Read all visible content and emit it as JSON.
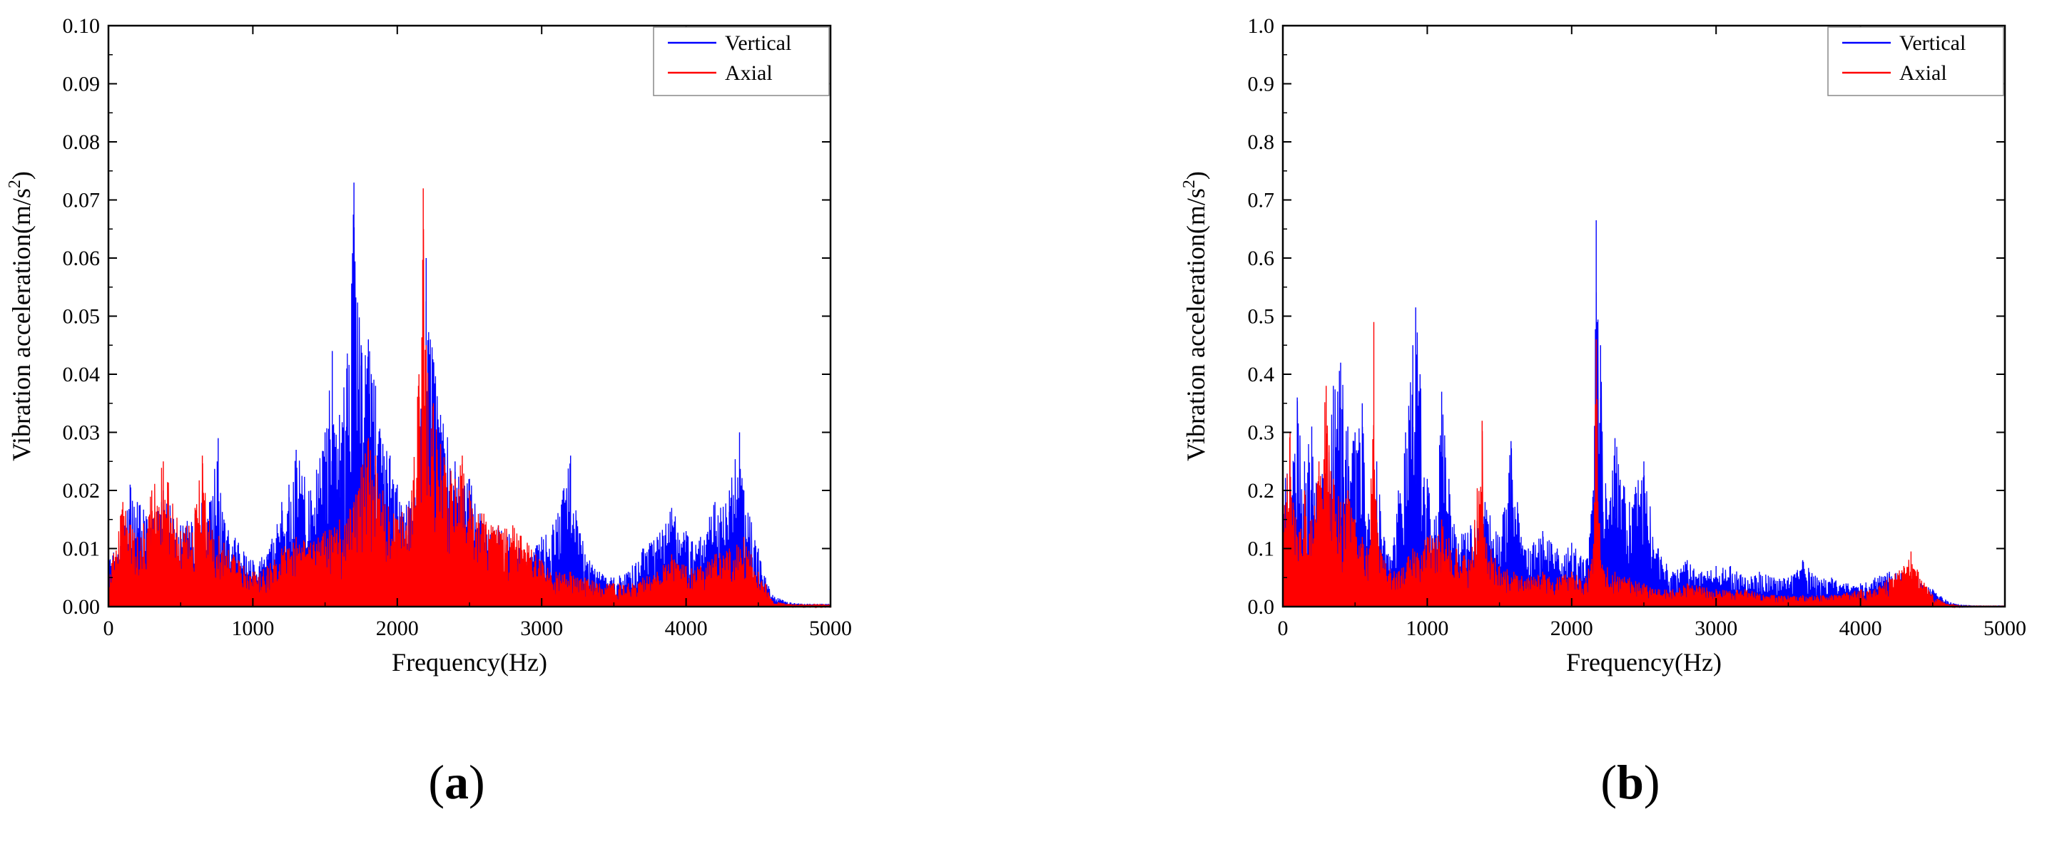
{
  "colors": {
    "vertical": "#0000ff",
    "axial": "#ff0000",
    "axis": "#000000",
    "legend_border": "#888888"
  },
  "chart_data": [
    {
      "type": "line",
      "panel_label": "a",
      "xlabel": "Frequency(Hz)",
      "ylabel_main": "Vibration acceleration(m/s",
      "ylabel_sup": "2",
      "ylabel_tail": ")",
      "xlim": [
        0,
        5000
      ],
      "ylim": [
        0,
        0.1
      ],
      "xticks": [
        0,
        1000,
        2000,
        3000,
        4000,
        5000
      ],
      "xtick_labels": [
        "0",
        "1000",
        "2000",
        "3000",
        "4000",
        "5000"
      ],
      "yticks": [
        0,
        0.01,
        0.02,
        0.03,
        0.04,
        0.05,
        0.06,
        0.07,
        0.08,
        0.09,
        0.1
      ],
      "ytick_labels": [
        "0.00",
        "0.01",
        "0.02",
        "0.03",
        "0.04",
        "0.05",
        "0.06",
        "0.07",
        "0.08",
        "0.09",
        "0.10"
      ],
      "legend_position": "top-right",
      "series": [
        {
          "name": "Vertical",
          "color": "#0000ff",
          "x": [
            0,
            100,
            150,
            200,
            300,
            380,
            500,
            600,
            650,
            700,
            760,
            800,
            900,
            1000,
            1100,
            1200,
            1250,
            1300,
            1400,
            1500,
            1550,
            1600,
            1650,
            1700,
            1750,
            1800,
            1850,
            1900,
            1950,
            2000,
            2100,
            2150,
            2200,
            2300,
            2400,
            2500,
            2600,
            2700,
            2800,
            2900,
            3000,
            3100,
            3200,
            3300,
            3400,
            3500,
            3600,
            3700,
            3800,
            3900,
            4000,
            4100,
            4200,
            4300,
            4370,
            4400,
            4500,
            4550,
            4600,
            4700,
            4800,
            5000
          ],
          "y": [
            0.008,
            0.014,
            0.021,
            0.018,
            0.016,
            0.02,
            0.014,
            0.016,
            0.02,
            0.018,
            0.029,
            0.015,
            0.011,
            0.008,
            0.009,
            0.018,
            0.021,
            0.027,
            0.02,
            0.03,
            0.044,
            0.033,
            0.041,
            0.073,
            0.045,
            0.046,
            0.038,
            0.028,
            0.026,
            0.021,
            0.018,
            0.028,
            0.06,
            0.033,
            0.025,
            0.022,
            0.014,
            0.014,
            0.012,
            0.009,
            0.012,
            0.015,
            0.026,
            0.009,
            0.006,
            0.005,
            0.006,
            0.01,
            0.012,
            0.017,
            0.013,
            0.012,
            0.018,
            0.02,
            0.03,
            0.02,
            0.01,
            0.005,
            0.002,
            0.0008,
            0.0005,
            0.0005
          ]
        },
        {
          "name": "Axial",
          "color": "#ff0000",
          "x": [
            0,
            100,
            200,
            300,
            380,
            500,
            600,
            650,
            700,
            800,
            900,
            1000,
            1100,
            1200,
            1300,
            1400,
            1500,
            1600,
            1700,
            1750,
            1800,
            1850,
            1900,
            2000,
            2100,
            2150,
            2180,
            2200,
            2250,
            2300,
            2400,
            2450,
            2500,
            2600,
            2700,
            2800,
            2900,
            3000,
            3100,
            3200,
            3300,
            3400,
            3500,
            3600,
            3700,
            3800,
            3900,
            4000,
            4100,
            4200,
            4300,
            4400,
            4450,
            4500,
            4550,
            4600,
            4700,
            4800,
            5000
          ],
          "y": [
            0.005,
            0.018,
            0.012,
            0.02,
            0.025,
            0.013,
            0.017,
            0.026,
            0.015,
            0.011,
            0.008,
            0.006,
            0.007,
            0.01,
            0.012,
            0.011,
            0.013,
            0.015,
            0.018,
            0.024,
            0.029,
            0.026,
            0.02,
            0.015,
            0.02,
            0.04,
            0.072,
            0.045,
            0.035,
            0.028,
            0.022,
            0.026,
            0.02,
            0.016,
            0.014,
            0.014,
            0.011,
            0.008,
            0.006,
            0.006,
            0.005,
            0.004,
            0.004,
            0.004,
            0.005,
            0.006,
            0.009,
            0.007,
            0.007,
            0.009,
            0.01,
            0.012,
            0.009,
            0.006,
            0.004,
            0.001,
            0.0005,
            0.0004,
            0.0004
          ]
        }
      ]
    },
    {
      "type": "line",
      "panel_label": "b",
      "xlabel": "Frequency(Hz)",
      "ylabel_main": "Vibration acceleration(m/s",
      "ylabel_sup": "2",
      "ylabel_tail": ")",
      "xlim": [
        0,
        5000
      ],
      "ylim": [
        0,
        1.0
      ],
      "xticks": [
        0,
        1000,
        2000,
        3000,
        4000,
        5000
      ],
      "xtick_labels": [
        "0",
        "1000",
        "2000",
        "3000",
        "4000",
        "5000"
      ],
      "yticks": [
        0,
        0.1,
        0.2,
        0.3,
        0.4,
        0.5,
        0.6,
        0.7,
        0.8,
        0.9,
        1.0
      ],
      "ytick_labels": [
        "0.0",
        "0.1",
        "0.2",
        "0.3",
        "0.4",
        "0.5",
        "0.6",
        "0.7",
        "0.8",
        "0.9",
        "1.0"
      ],
      "legend_position": "top-right",
      "series": [
        {
          "name": "Vertical",
          "color": "#0000ff",
          "x": [
            0,
            50,
            100,
            150,
            200,
            250,
            300,
            350,
            400,
            450,
            500,
            550,
            600,
            650,
            700,
            750,
            800,
            850,
            900,
            920,
            950,
            1000,
            1050,
            1100,
            1150,
            1200,
            1300,
            1400,
            1500,
            1580,
            1650,
            1700,
            1800,
            1900,
            2000,
            2100,
            2150,
            2170,
            2200,
            2250,
            2300,
            2400,
            2500,
            2600,
            2700,
            2800,
            2900,
            3000,
            3100,
            3200,
            3300,
            3400,
            3500,
            3600,
            3700,
            3800,
            3900,
            4000,
            4100,
            4200,
            4300,
            4400,
            4500,
            4600,
            4650,
            4700,
            4800,
            5000
          ],
          "y": [
            0.3,
            0.2,
            0.36,
            0.25,
            0.31,
            0.2,
            0.28,
            0.38,
            0.42,
            0.31,
            0.3,
            0.35,
            0.15,
            0.25,
            0.12,
            0.08,
            0.2,
            0.3,
            0.45,
            0.515,
            0.4,
            0.22,
            0.15,
            0.37,
            0.22,
            0.12,
            0.14,
            0.18,
            0.12,
            0.285,
            0.12,
            0.1,
            0.13,
            0.1,
            0.11,
            0.08,
            0.2,
            0.665,
            0.45,
            0.15,
            0.29,
            0.18,
            0.25,
            0.1,
            0.06,
            0.08,
            0.06,
            0.07,
            0.07,
            0.05,
            0.06,
            0.05,
            0.05,
            0.08,
            0.05,
            0.05,
            0.04,
            0.04,
            0.05,
            0.06,
            0.06,
            0.05,
            0.03,
            0.01,
            0.005,
            0.002,
            0.001,
            0.001
          ]
        },
        {
          "name": "Axial",
          "color": "#ff0000",
          "x": [
            0,
            50,
            100,
            150,
            200,
            250,
            300,
            350,
            400,
            450,
            500,
            550,
            600,
            630,
            650,
            700,
            800,
            900,
            1000,
            1100,
            1200,
            1300,
            1380,
            1400,
            1500,
            1600,
            1700,
            1800,
            1900,
            2000,
            2100,
            2150,
            2170,
            2200,
            2300,
            2400,
            2500,
            2600,
            2700,
            2800,
            3000,
            3200,
            3400,
            3600,
            3800,
            4000,
            4100,
            4200,
            4300,
            4350,
            4400,
            4500,
            4600,
            4700,
            5000
          ],
          "y": [
            0.15,
            0.3,
            0.12,
            0.2,
            0.15,
            0.25,
            0.38,
            0.22,
            0.18,
            0.2,
            0.15,
            0.12,
            0.1,
            0.49,
            0.15,
            0.08,
            0.06,
            0.1,
            0.12,
            0.15,
            0.1,
            0.08,
            0.32,
            0.12,
            0.07,
            0.06,
            0.05,
            0.06,
            0.05,
            0.06,
            0.05,
            0.1,
            0.46,
            0.08,
            0.06,
            0.05,
            0.04,
            0.03,
            0.03,
            0.04,
            0.03,
            0.03,
            0.02,
            0.02,
            0.02,
            0.03,
            0.03,
            0.05,
            0.07,
            0.095,
            0.06,
            0.02,
            0.005,
            0.001,
            0.001
          ]
        }
      ]
    }
  ]
}
